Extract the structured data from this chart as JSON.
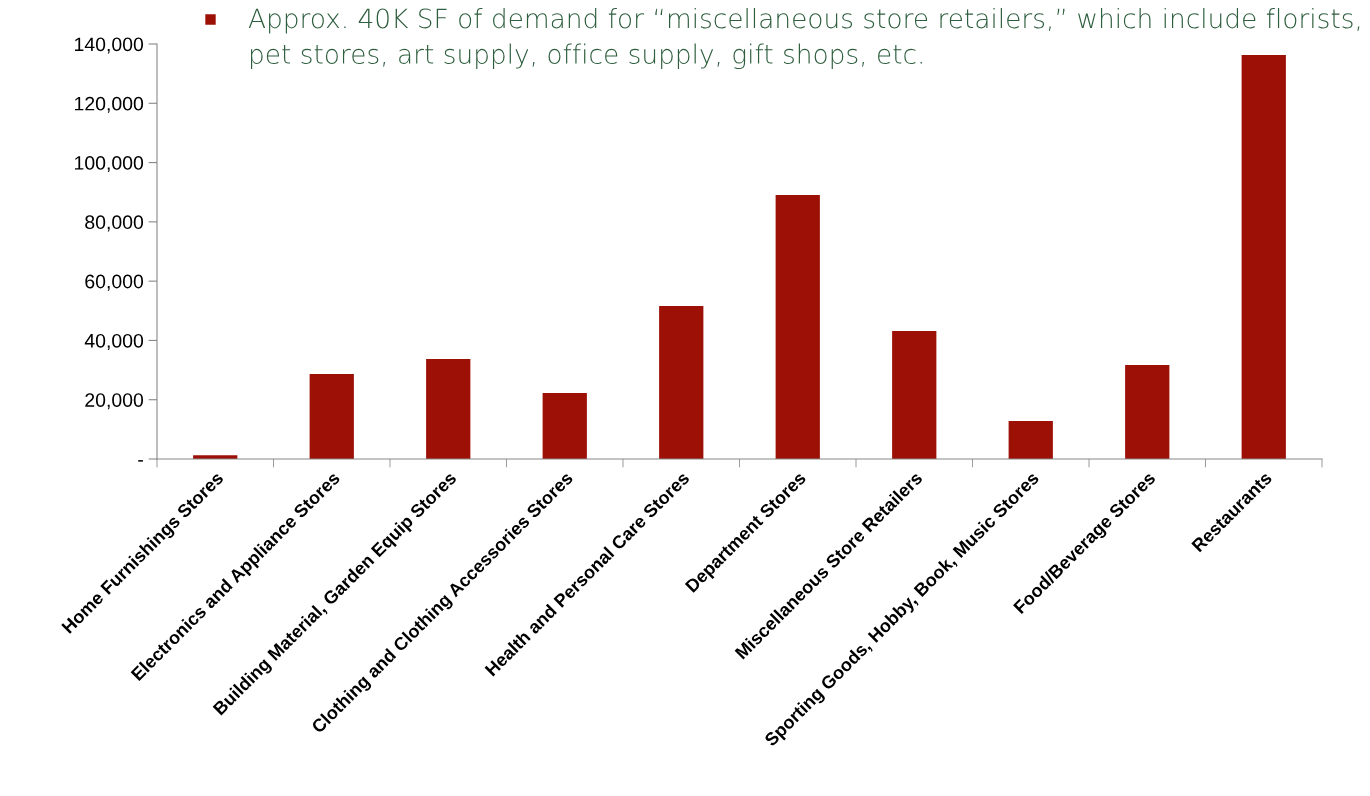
{
  "chart_data": {
    "type": "bar",
    "categories": [
      "Home Furnishings Stores",
      "Electronics and Appliance Stores",
      "Building Material, Garden Equip Stores",
      "Clothing and Clothing Accessories Stores",
      "Health and Personal Care Stores",
      "Department Stores",
      "Miscellaneous Store Retailers",
      "Sporting Goods, Hobby, Book, Music Stores",
      "Food/Beverage Stores",
      "Restaurants"
    ],
    "values": [
      1300,
      28700,
      33700,
      22300,
      51600,
      89100,
      43200,
      12800,
      31700,
      136300
    ],
    "color": "#9c1006",
    "ylim": [
      0,
      140000
    ],
    "yticks": [
      {
        "value": 0,
        "label": "-"
      },
      {
        "value": 20000,
        "label": "20,000"
      },
      {
        "value": 40000,
        "label": "40,000"
      },
      {
        "value": 60000,
        "label": "60,000"
      },
      {
        "value": 80000,
        "label": "80,000"
      },
      {
        "value": 100000,
        "label": "100,000"
      },
      {
        "value": 120000,
        "label": "120,000"
      },
      {
        "value": 140000,
        "label": "140,000"
      }
    ],
    "annotations": [
      "Approx. 40K SF of demand for “miscellaneous store retailers,” which include florists, pet stores, art supply, office supply, gift shops, etc."
    ],
    "grid": false,
    "legend": false
  }
}
